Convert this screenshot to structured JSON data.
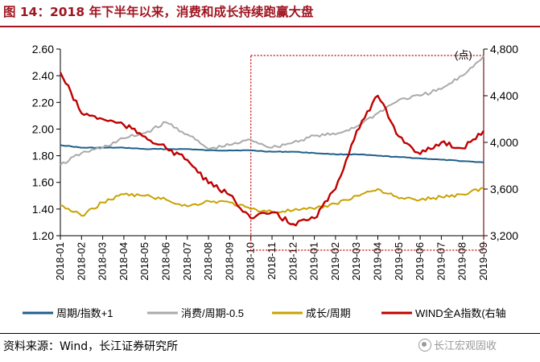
{
  "title": "图 14：2018 年下半年以来，消费和成长持续跑赢大盘",
  "source": "资料来源：Wind，长江证券研究所",
  "watermark": "长江宏观固收",
  "chart_data": {
    "type": "line",
    "right_axis_unit": "(点)",
    "y_left": {
      "ticks": [
        "2.60",
        "2.40",
        "2.20",
        "2.00",
        "1.80",
        "1.60",
        "1.40",
        "1.20"
      ],
      "range": [
        1.2,
        2.6
      ]
    },
    "y_right": {
      "ticks": [
        "4,800",
        "4,400",
        "4,000",
        "3,600",
        "3,200"
      ],
      "range": [
        3200,
        4800
      ]
    },
    "x_ticks": [
      "2018-01",
      "2018-02",
      "2018-03",
      "2018-04",
      "2018-05",
      "2018-06",
      "2018-07",
      "2018-08",
      "2018-09",
      "2018-10",
      "2018-11",
      "2018-12",
      "2019-01",
      "2019-02",
      "2019-03",
      "2019-04",
      "2019-05",
      "2019-06",
      "2019-07",
      "2019-08",
      "2019-09"
    ],
    "highlight_box": {
      "x_from": "2018-10",
      "x_to": "2019-09",
      "color": "#c00000"
    },
    "series": [
      {
        "name": "周期/指数+1",
        "axis": "left",
        "color": "#1f5f8b",
        "x": [
          "2018-01",
          "2018-02",
          "2018-03",
          "2018-04",
          "2018-05",
          "2018-06",
          "2018-07",
          "2018-08",
          "2018-09",
          "2018-10",
          "2018-11",
          "2018-12",
          "2019-01",
          "2019-02",
          "2019-03",
          "2019-04",
          "2019-05",
          "2019-06",
          "2019-07",
          "2019-08",
          "2019-09"
        ],
        "y": [
          1.88,
          1.86,
          1.86,
          1.86,
          1.85,
          1.85,
          1.85,
          1.84,
          1.84,
          1.84,
          1.83,
          1.83,
          1.82,
          1.81,
          1.81,
          1.8,
          1.79,
          1.78,
          1.77,
          1.76,
          1.75
        ]
      },
      {
        "name": "消费/周期-0.5",
        "axis": "left",
        "color": "#aaaaaa",
        "x": [
          "2018-01",
          "2018-02",
          "2018-03",
          "2018-04",
          "2018-05",
          "2018-06",
          "2018-07",
          "2018-08",
          "2018-09",
          "2018-10",
          "2018-11",
          "2018-12",
          "2019-01",
          "2019-02",
          "2019-03",
          "2019-04",
          "2019-05",
          "2019-06",
          "2019-07",
          "2019-08",
          "2019-09"
        ],
        "y": [
          1.73,
          1.82,
          1.86,
          1.93,
          1.97,
          2.05,
          1.96,
          1.85,
          1.88,
          1.92,
          1.86,
          1.9,
          1.95,
          1.96,
          2.02,
          2.12,
          2.22,
          2.25,
          2.3,
          2.4,
          2.55
        ]
      },
      {
        "name": "成长/周期",
        "axis": "left",
        "color": "#c9a200",
        "x": [
          "2018-01",
          "2018-02",
          "2018-03",
          "2018-04",
          "2018-05",
          "2018-06",
          "2018-07",
          "2018-08",
          "2018-09",
          "2018-10",
          "2018-11",
          "2018-12",
          "2019-01",
          "2019-02",
          "2019-03",
          "2019-04",
          "2019-05",
          "2019-06",
          "2019-07",
          "2019-08",
          "2019-09"
        ],
        "y": [
          1.43,
          1.35,
          1.45,
          1.51,
          1.5,
          1.47,
          1.42,
          1.46,
          1.45,
          1.4,
          1.38,
          1.39,
          1.4,
          1.44,
          1.5,
          1.55,
          1.48,
          1.47,
          1.49,
          1.51,
          1.56
        ]
      },
      {
        "name": "WIND全A指数(右轴",
        "axis": "right",
        "color": "#c00000",
        "x": [
          "2018-01",
          "2018-02",
          "2018-03",
          "2018-04",
          "2018-05",
          "2018-06",
          "2018-07",
          "2018-08",
          "2018-09",
          "2018-10",
          "2018-11",
          "2018-12",
          "2019-01",
          "2019-02",
          "2019-03",
          "2019-04",
          "2019-05",
          "2019-06",
          "2019-07",
          "2019-08",
          "2019-09"
        ],
        "y": [
          4600,
          4250,
          4200,
          4150,
          4050,
          3950,
          3850,
          3650,
          3550,
          3350,
          3400,
          3300,
          3350,
          3600,
          4100,
          4400,
          4050,
          3900,
          4000,
          3950,
          4100
        ]
      }
    ]
  }
}
